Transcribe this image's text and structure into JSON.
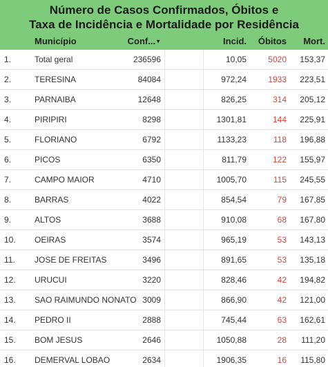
{
  "header": {
    "title_lines": [
      "Número de Casos Confirmados, Óbitos e",
      "Taxa de Incidência e Mortalidade por Residência"
    ]
  },
  "table": {
    "columns": [
      "Município",
      "Conf...",
      "Incid.",
      "Óbitos",
      "Mort."
    ],
    "rows": [
      [
        "1.",
        "Total geral",
        "236596",
        "10,05",
        "5020",
        "153,37"
      ],
      [
        "2.",
        "TERESINA",
        "84084",
        "972,24",
        "1933",
        "223,51"
      ],
      [
        "3.",
        "PARNAIBA",
        "12648",
        "826,25",
        "314",
        "205,12"
      ],
      [
        "4.",
        "PIRIPIRI",
        "8298",
        "1301,81",
        "144",
        "225,91"
      ],
      [
        "5.",
        "FLORIANO",
        "6792",
        "1133,23",
        "118",
        "196,88"
      ],
      [
        "6.",
        "PICOS",
        "6350",
        "811,79",
        "122",
        "155,97"
      ],
      [
        "7.",
        "CAMPO MAIOR",
        "4710",
        "1005,70",
        "115",
        "245,55"
      ],
      [
        "8.",
        "BARRAS",
        "4022",
        "854,54",
        "79",
        "167,85"
      ],
      [
        "9.",
        "ALTOS",
        "3688",
        "910,08",
        "68",
        "167,80"
      ],
      [
        "10.",
        "OEIRAS",
        "3574",
        "965,19",
        "53",
        "143,13"
      ],
      [
        "11.",
        "JOSE DE FREITAS",
        "3496",
        "891,65",
        "53",
        "135,18"
      ],
      [
        "12.",
        "URUCUI",
        "3220",
        "828,46",
        "42",
        "194,82"
      ],
      [
        "13.",
        "SAO RAIMUNDO NONATO",
        "3009",
        "866,90",
        "42",
        "121,00"
      ],
      [
        "14.",
        "PEDRO II",
        "2888",
        "745,44",
        "63",
        "162,61"
      ],
      [
        "15.",
        "BOM JESUS",
        "2646",
        "1050,88",
        "28",
        "111,20"
      ],
      [
        "16.",
        "DEMERVAL LOBAO",
        "2634",
        "1906,35",
        "16",
        "115,80"
      ]
    ]
  }
}
